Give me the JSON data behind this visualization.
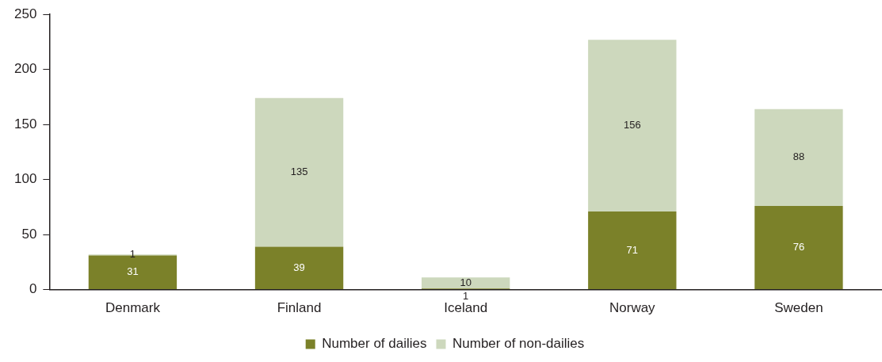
{
  "chart_data": {
    "type": "bar",
    "categories": [
      "Denmark",
      "Finland",
      "Iceland",
      "Norway",
      "Sweden"
    ],
    "stacked": true,
    "series": [
      {
        "name": "Number of dailies",
        "color": "#7b8129",
        "values": [
          31,
          39,
          1,
          71,
          76
        ]
      },
      {
        "name": "Number of non-dailies",
        "color": "#cdd8bd",
        "values": [
          1,
          135,
          10,
          156,
          88
        ]
      }
    ],
    "ylim": [
      0,
      250
    ],
    "yticks": [
      0,
      50,
      100,
      150,
      200,
      250
    ],
    "data_labels": true,
    "legend": "bottom",
    "grid": false
  }
}
